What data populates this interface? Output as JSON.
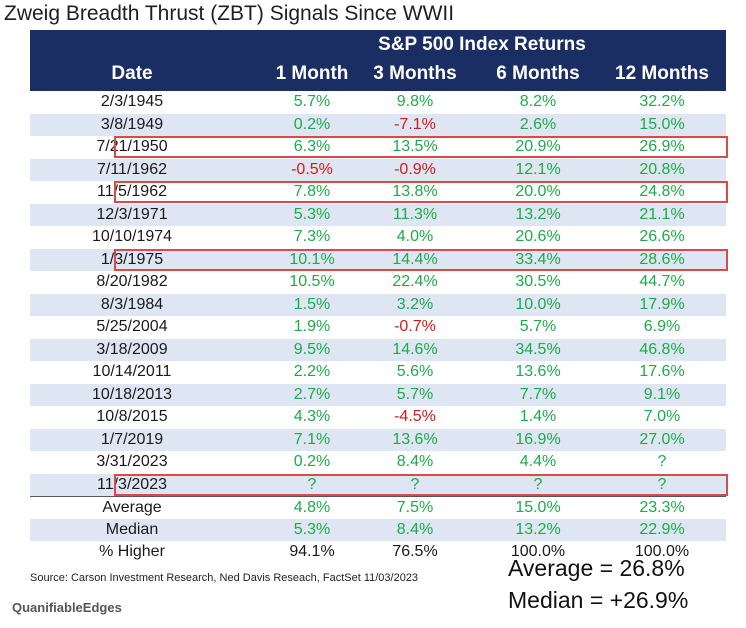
{
  "title": "Zweig Breadth Thrust (ZBT) Signals Since WWII",
  "header": {
    "group_label": "S&P 500 Index Returns",
    "columns": [
      "Date",
      "1 Month",
      "3 Months",
      "6 Months",
      "12 Months"
    ]
  },
  "chart_data": {
    "type": "table",
    "title": "Zweig Breadth Thrust (ZBT) Signals Since WWII",
    "columns": [
      "Date",
      "1 Month",
      "3 Months",
      "6 Months",
      "12 Months"
    ],
    "rows": [
      [
        "2/3/1945",
        "5.7%",
        "9.8%",
        "8.2%",
        "32.2%"
      ],
      [
        "3/8/1949",
        "0.2%",
        "-7.1%",
        "2.6%",
        "15.0%"
      ],
      [
        "7/21/1950",
        "6.3%",
        "13.5%",
        "20.9%",
        "26.9%"
      ],
      [
        "7/11/1962",
        "-0.5%",
        "-0.9%",
        "12.1%",
        "20.8%"
      ],
      [
        "11/5/1962",
        "7.8%",
        "13.8%",
        "20.0%",
        "24.8%"
      ],
      [
        "12/3/1971",
        "5.3%",
        "11.3%",
        "13.2%",
        "21.1%"
      ],
      [
        "10/10/1974",
        "7.3%",
        "4.0%",
        "20.6%",
        "26.6%"
      ],
      [
        "1/3/1975",
        "10.1%",
        "14.4%",
        "33.4%",
        "28.6%"
      ],
      [
        "8/20/1982",
        "10.5%",
        "22.4%",
        "30.5%",
        "44.7%"
      ],
      [
        "8/3/1984",
        "1.5%",
        "3.2%",
        "10.0%",
        "17.9%"
      ],
      [
        "5/25/2004",
        "1.9%",
        "-0.7%",
        "5.7%",
        "6.9%"
      ],
      [
        "3/18/2009",
        "9.5%",
        "14.6%",
        "34.5%",
        "46.8%"
      ],
      [
        "10/14/2011",
        "2.2%",
        "5.6%",
        "13.6%",
        "17.6%"
      ],
      [
        "10/18/2013",
        "2.7%",
        "5.7%",
        "7.7%",
        "9.1%"
      ],
      [
        "10/8/2015",
        "4.3%",
        "-4.5%",
        "1.4%",
        "7.0%"
      ],
      [
        "1/7/2019",
        "7.1%",
        "13.6%",
        "16.9%",
        "27.0%"
      ],
      [
        "3/31/2023",
        "0.2%",
        "8.4%",
        "4.4%",
        "?"
      ],
      [
        "11/3/2023",
        "?",
        "?",
        "?",
        "?"
      ],
      [
        "Average",
        "4.8%",
        "7.5%",
        "15.0%",
        "23.3%"
      ],
      [
        "Median",
        "5.3%",
        "8.4%",
        "13.2%",
        "22.9%"
      ],
      [
        "% Higher",
        "94.1%",
        "76.5%",
        "100.0%",
        "100.0%"
      ]
    ],
    "highlighted_dates": [
      "7/21/1950",
      "11/5/1962",
      "1/3/1975",
      "11/3/2023"
    ]
  },
  "source": "Source: Carson Investment Research, Ned Davis Reseach, FactSet 11/03/2023",
  "brand": "QuanifiableEdges",
  "summary": {
    "average": "Average = 26.8%",
    "median": "Median = +26.9%"
  },
  "colors": {
    "header_bg": "#1a2e63",
    "row_alt": "#dde6f2",
    "positive": "#1faa4a",
    "negative": "#d11a1a",
    "highlight_border": "#d94a4a"
  }
}
